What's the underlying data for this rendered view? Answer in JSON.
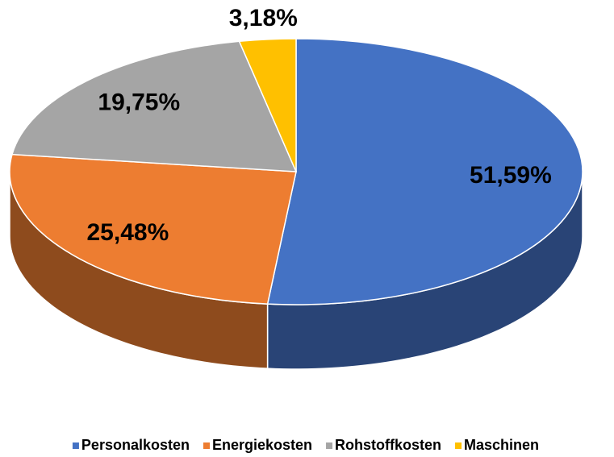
{
  "chart_data": {
    "type": "pie",
    "categories": [
      "Personalkosten",
      "Energiekosten",
      "Rohstoffkosten",
      "Maschinen"
    ],
    "values": [
      51.59,
      25.48,
      19.75,
      3.18
    ],
    "value_labels": [
      "51,59%",
      "25,48%",
      "19,75%",
      "3,18%"
    ],
    "colors": [
      "#4472c4",
      "#ed7d31",
      "#a5a5a5",
      "#ffc000"
    ],
    "legend": "bottom"
  }
}
